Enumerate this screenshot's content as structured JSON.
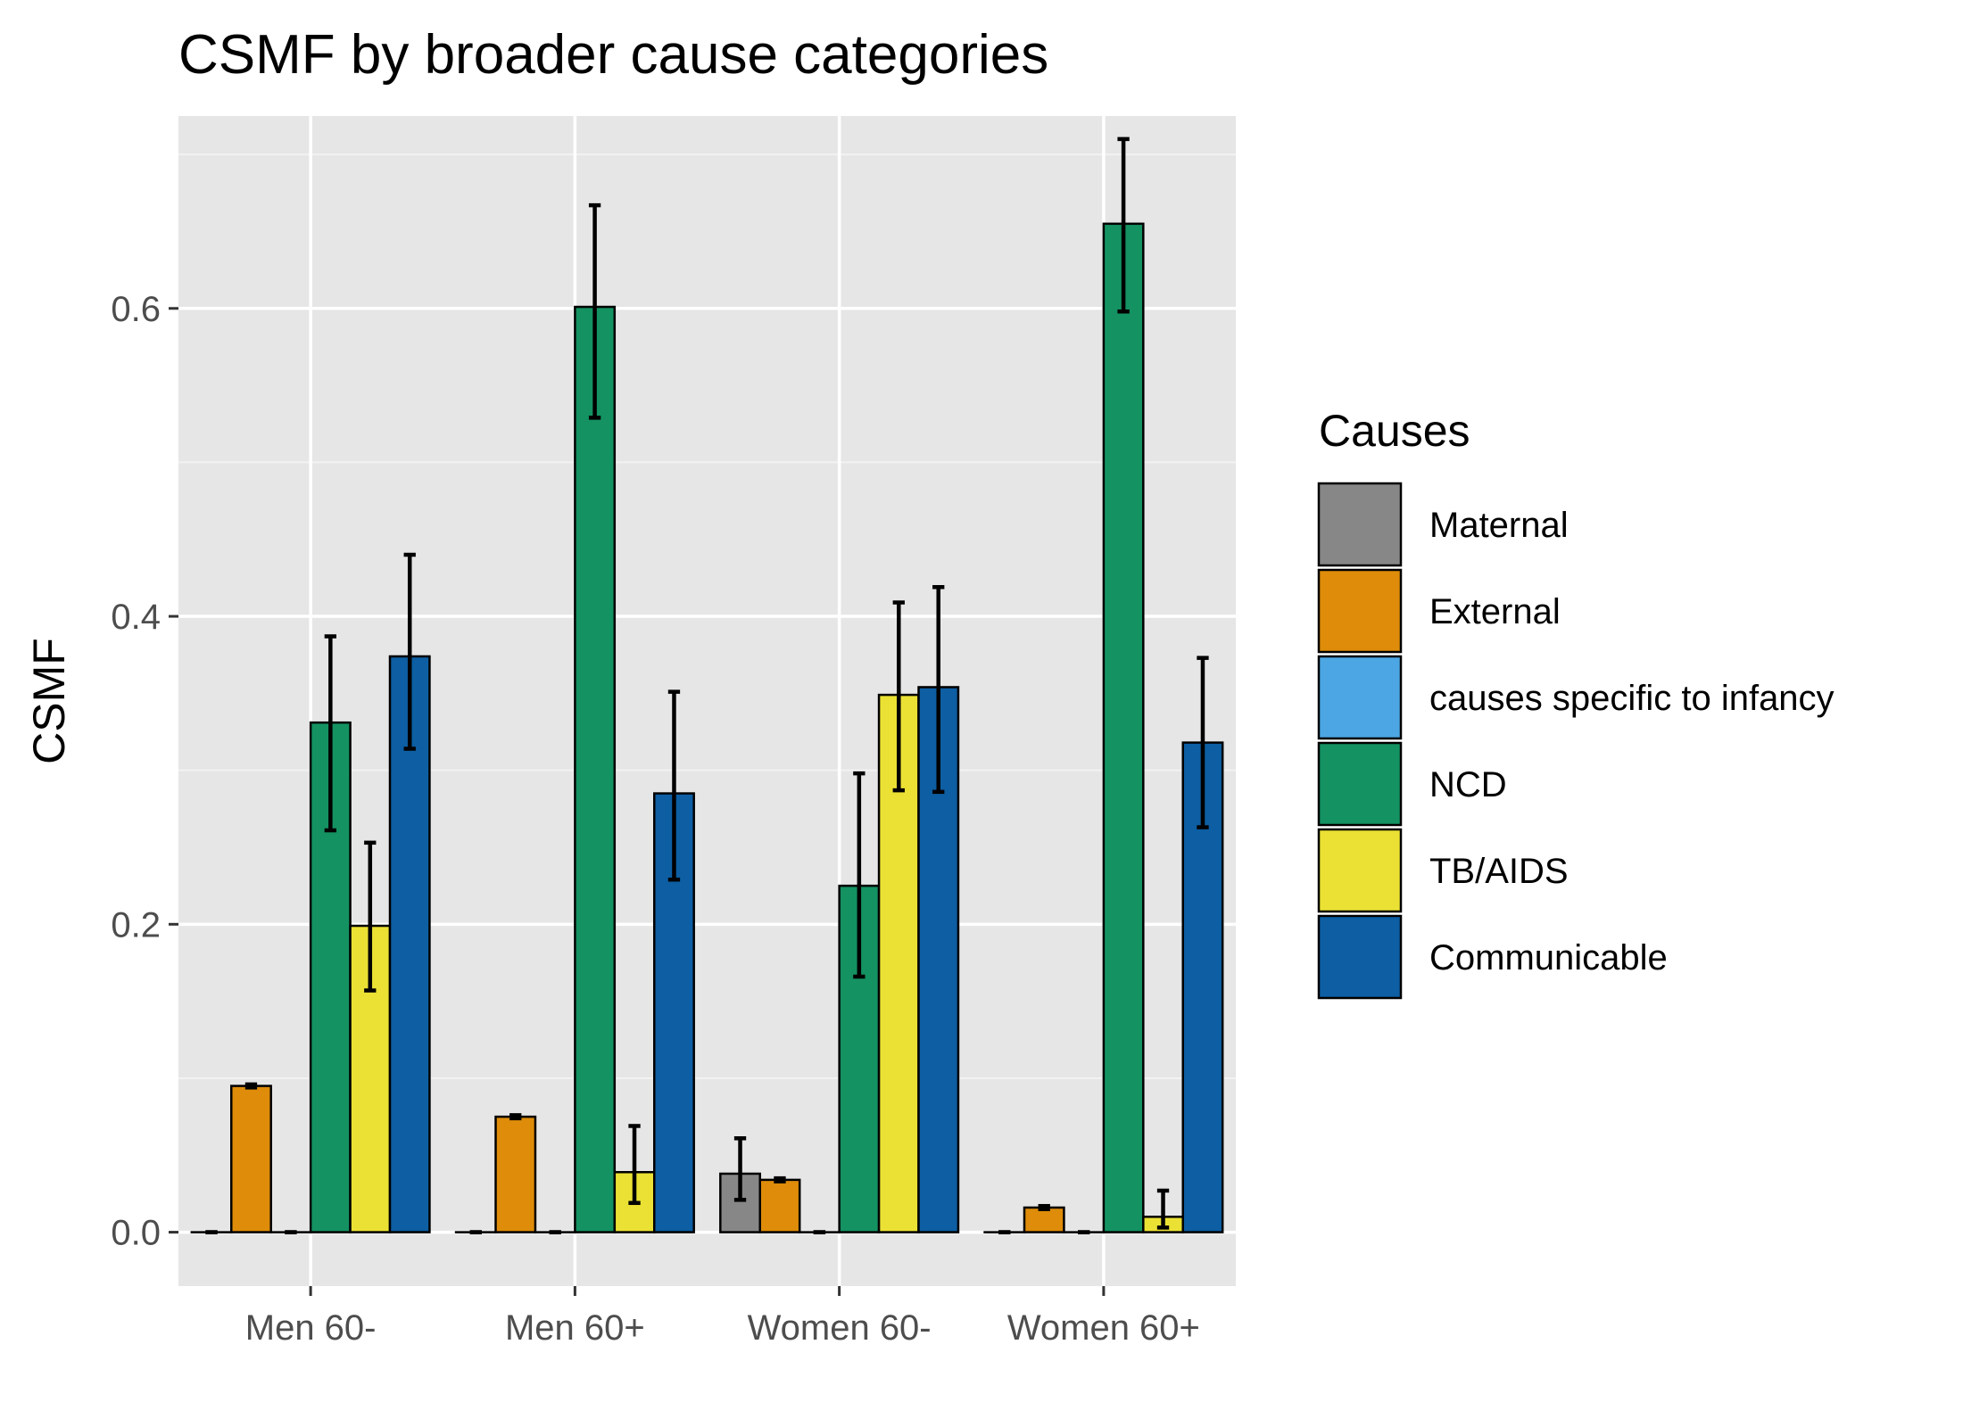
{
  "chart_data": {
    "type": "bar",
    "title": "CSMF by broader cause categories",
    "xlabel": "",
    "ylabel": "CSMF",
    "ylim": [
      -0.035,
      0.725
    ],
    "yticks": [
      0.0,
      0.2,
      0.4,
      0.6
    ],
    "ytick_labels": [
      "0.0",
      "0.2",
      "0.4",
      "0.6"
    ],
    "grid": true,
    "legend_position": "right",
    "legend_title": "Causes",
    "categories": [
      "Men 60-",
      "Men 60+",
      "Women 60-",
      "Women 60+"
    ],
    "series": [
      {
        "name": "Maternal",
        "color": "#878787",
        "values": [
          0.0,
          0.0,
          0.038,
          0.0
        ],
        "error_low": [
          0.0,
          0.0,
          0.021,
          0.0
        ],
        "error_high": [
          0.0,
          0.0,
          0.061,
          0.0
        ]
      },
      {
        "name": "External",
        "color": "#DE8C09",
        "values": [
          0.095,
          0.075,
          0.034,
          0.016
        ],
        "error_low": [
          0.094,
          0.074,
          0.033,
          0.015
        ],
        "error_high": [
          0.096,
          0.076,
          0.035,
          0.017
        ]
      },
      {
        "name": "causes specific to infancy",
        "color": "#4BA6E3",
        "values": [
          0.0,
          0.0,
          0.0,
          0.0
        ],
        "error_low": [
          0.0,
          0.0,
          0.0,
          0.0
        ],
        "error_high": [
          0.0,
          0.0,
          0.0,
          0.0
        ]
      },
      {
        "name": "NCD",
        "color": "#149262",
        "values": [
          0.331,
          0.601,
          0.225,
          0.655
        ],
        "error_low": [
          0.261,
          0.529,
          0.166,
          0.598
        ],
        "error_high": [
          0.387,
          0.667,
          0.298,
          0.71
        ]
      },
      {
        "name": "TB/AIDS",
        "color": "#EAE134",
        "values": [
          0.199,
          0.039,
          0.349,
          0.01
        ],
        "error_low": [
          0.157,
          0.019,
          0.287,
          0.003
        ],
        "error_high": [
          0.253,
          0.069,
          0.409,
          0.027
        ]
      },
      {
        "name": "Communicable",
        "color": "#0D5EA2",
        "values": [
          0.374,
          0.285,
          0.354,
          0.318
        ],
        "error_low": [
          0.314,
          0.229,
          0.286,
          0.263
        ],
        "error_high": [
          0.44,
          0.351,
          0.419,
          0.373
        ]
      }
    ]
  },
  "colors": {
    "panel_background": "#E6E6E6",
    "grid_major": "#FFFFFF",
    "grid_minor": "#F2F2F2",
    "bar_outline": "#000000",
    "error_bar": "#000000",
    "tick_mark": "#333333"
  }
}
